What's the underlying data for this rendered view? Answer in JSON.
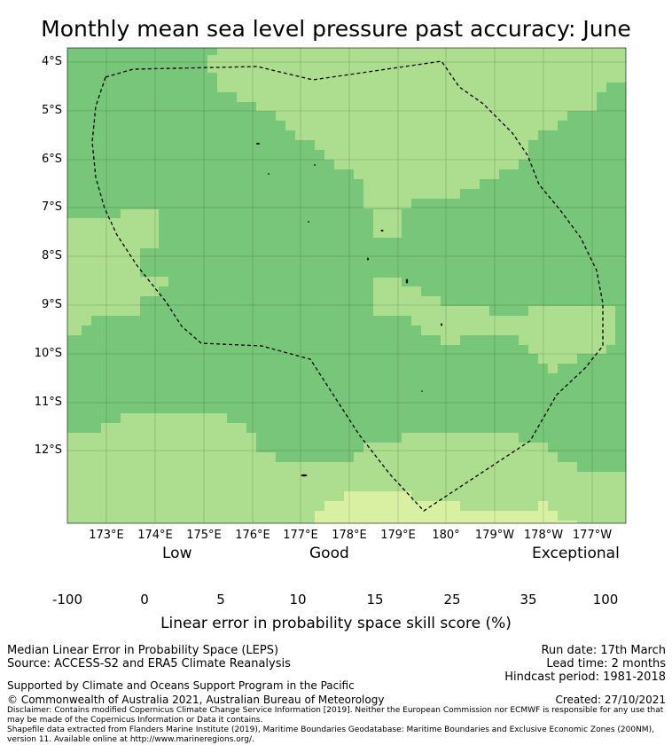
{
  "title": "Monthly mean sea level pressure past accuracy: June",
  "map": {
    "lat_ticks": [
      "4°S",
      "5°S",
      "6°S",
      "7°S",
      "8°S",
      "9°S",
      "10°S",
      "11°S",
      "12°S"
    ],
    "lon_ticks": [
      "173°E",
      "174°E",
      "175°E",
      "176°E",
      "177°E",
      "178°E",
      "179°E",
      "180°",
      "179°W",
      "178°W",
      "177°W"
    ]
  },
  "legend": {
    "categories": [
      "Low",
      "Good",
      "Exceptional"
    ],
    "ticks": [
      "-100",
      "0",
      "5",
      "10",
      "15",
      "25",
      "35",
      "100"
    ],
    "colors": [
      "#ffffff",
      "#ffffcc",
      "#d9f0a3",
      "#addd8e",
      "#78c679",
      "#41ab5d",
      "#238443"
    ],
    "title": "Linear error in probability space skill score (%)"
  },
  "footer": {
    "line1": "Median Linear Error in Probability Space (LEPS)",
    "line2": "Source: ACCESS-S2 and ERA5 Climate Reanalysis",
    "support": "Supported by Climate and Oceans Support Program in the Pacific",
    "copyright": "© Commonwealth of Australia 2021, Australian Bureau of Meteorology",
    "run_date": "Run date: 17th March",
    "lead_time": "Lead time: 2 months",
    "hindcast": "Hindcast period: 1981-2018",
    "created": "Created: 27/10/2021",
    "disclaimer": "Disclaimer: Contains modified Copernicus Climate Change Service Information [2019]. Neither the European Commission nor ECMWF is responsible for any use that may be made of the Copernicus Information or Data it contains.",
    "shapefile": "Shapefile data extracted from Flanders Marine Institute (2019), Maritime Boundaries Geodatabase: Maritime Boundaries and Exclusive Economic Zones (200NM), version 11. Available online at http://www.marineregions.org/."
  }
}
